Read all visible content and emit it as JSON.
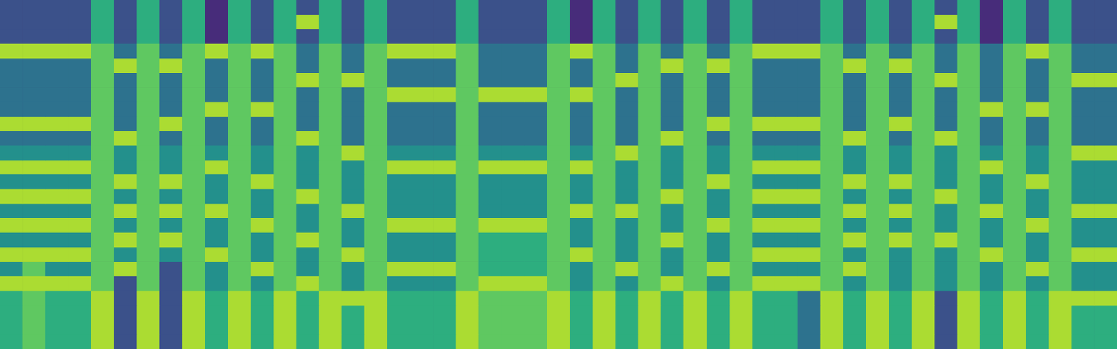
{
  "chart_data": {
    "type": "heatmap",
    "tick_labels": false,
    "color_range": [
      1,
      9
    ],
    "cells": [
      [
        3,
        3,
        3,
        3,
        6,
        3,
        6,
        3,
        6,
        2,
        6,
        3,
        6,
        3,
        6,
        3,
        6,
        3,
        3,
        3,
        6,
        3,
        3,
        3,
        6,
        2,
        6,
        3,
        6,
        3,
        6,
        3,
        6,
        3,
        3,
        3,
        6,
        3,
        6,
        3,
        6,
        3,
        6,
        2,
        6,
        3,
        6,
        3,
        3
      ],
      [
        3,
        3,
        3,
        3,
        6,
        3,
        6,
        3,
        6,
        2,
        6,
        3,
        6,
        8,
        6,
        3,
        6,
        3,
        3,
        3,
        6,
        3,
        3,
        3,
        6,
        2,
        6,
        3,
        6,
        3,
        6,
        3,
        6,
        3,
        3,
        3,
        6,
        3,
        6,
        3,
        6,
        8,
        6,
        2,
        6,
        3,
        6,
        3,
        3
      ],
      [
        3,
        3,
        3,
        3,
        6,
        3,
        6,
        3,
        6,
        2,
        6,
        3,
        6,
        3,
        6,
        3,
        6,
        3,
        3,
        3,
        6,
        3,
        3,
        3,
        6,
        2,
        6,
        3,
        6,
        3,
        6,
        3,
        6,
        3,
        3,
        3,
        6,
        3,
        6,
        3,
        6,
        3,
        6,
        2,
        6,
        3,
        6,
        3,
        3
      ],
      [
        8,
        8,
        8,
        8,
        7,
        4,
        7,
        4,
        7,
        8,
        7,
        8,
        7,
        4,
        7,
        4,
        7,
        8,
        8,
        8,
        7,
        4,
        4,
        4,
        7,
        8,
        7,
        4,
        7,
        4,
        7,
        4,
        7,
        8,
        8,
        8,
        7,
        4,
        7,
        4,
        7,
        4,
        7,
        4,
        7,
        8,
        7,
        4,
        4
      ],
      [
        4,
        4,
        4,
        4,
        7,
        8,
        7,
        8,
        7,
        4,
        7,
        4,
        7,
        4,
        7,
        4,
        7,
        4,
        4,
        4,
        7,
        4,
        4,
        4,
        7,
        4,
        7,
        4,
        7,
        8,
        7,
        8,
        7,
        4,
        4,
        4,
        7,
        8,
        7,
        8,
        7,
        4,
        7,
        4,
        7,
        4,
        7,
        4,
        4
      ],
      [
        4,
        4,
        4,
        4,
        7,
        4,
        7,
        4,
        7,
        4,
        7,
        4,
        7,
        8,
        7,
        8,
        7,
        4,
        4,
        4,
        7,
        4,
        4,
        4,
        7,
        4,
        7,
        8,
        7,
        4,
        7,
        4,
        7,
        4,
        4,
        4,
        7,
        4,
        7,
        4,
        7,
        8,
        7,
        4,
        7,
        4,
        7,
        8,
        8
      ],
      [
        4,
        4,
        4,
        4,
        7,
        4,
        7,
        4,
        7,
        4,
        7,
        4,
        7,
        4,
        7,
        4,
        7,
        8,
        8,
        8,
        7,
        8,
        8,
        8,
        7,
        8,
        7,
        4,
        7,
        4,
        7,
        4,
        7,
        4,
        4,
        4,
        7,
        4,
        7,
        4,
        7,
        4,
        7,
        4,
        7,
        4,
        7,
        4,
        4
      ],
      [
        4,
        4,
        4,
        4,
        7,
        4,
        7,
        4,
        7,
        8,
        7,
        8,
        7,
        4,
        7,
        4,
        7,
        4,
        4,
        4,
        7,
        4,
        4,
        4,
        7,
        4,
        7,
        4,
        7,
        4,
        7,
        4,
        7,
        4,
        4,
        4,
        7,
        4,
        7,
        4,
        7,
        4,
        7,
        8,
        7,
        8,
        7,
        4,
        4
      ],
      [
        8,
        8,
        8,
        8,
        7,
        4,
        7,
        8,
        7,
        4,
        7,
        4,
        7,
        4,
        7,
        4,
        7,
        4,
        4,
        4,
        7,
        4,
        4,
        4,
        7,
        4,
        7,
        4,
        7,
        4,
        7,
        8,
        7,
        8,
        8,
        8,
        7,
        4,
        7,
        8,
        7,
        4,
        7,
        4,
        7,
        4,
        7,
        4,
        4
      ],
      [
        4,
        4,
        4,
        4,
        7,
        8,
        7,
        4,
        7,
        4,
        7,
        4,
        7,
        8,
        7,
        4,
        7,
        4,
        4,
        4,
        7,
        4,
        4,
        4,
        7,
        4,
        7,
        4,
        7,
        8,
        7,
        4,
        7,
        4,
        4,
        4,
        7,
        8,
        7,
        4,
        7,
        8,
        7,
        4,
        7,
        4,
        7,
        4,
        4
      ],
      [
        5,
        5,
        5,
        5,
        7,
        5,
        7,
        5,
        7,
        5,
        7,
        5,
        7,
        5,
        7,
        8,
        7,
        5,
        5,
        5,
        7,
        5,
        5,
        5,
        7,
        5,
        7,
        8,
        7,
        5,
        7,
        5,
        7,
        5,
        5,
        5,
        7,
        5,
        7,
        5,
        7,
        5,
        7,
        5,
        7,
        5,
        7,
        8,
        8
      ],
      [
        8,
        8,
        8,
        8,
        7,
        5,
        7,
        5,
        7,
        8,
        7,
        5,
        7,
        5,
        7,
        5,
        7,
        8,
        8,
        8,
        7,
        8,
        8,
        8,
        7,
        8,
        7,
        5,
        7,
        5,
        7,
        5,
        7,
        8,
        8,
        8,
        7,
        5,
        7,
        5,
        7,
        5,
        7,
        8,
        7,
        5,
        7,
        5,
        5
      ],
      [
        5,
        5,
        5,
        5,
        7,
        8,
        7,
        8,
        7,
        5,
        7,
        8,
        7,
        5,
        7,
        5,
        7,
        5,
        5,
        5,
        7,
        5,
        5,
        5,
        7,
        5,
        7,
        5,
        7,
        5,
        7,
        8,
        7,
        5,
        5,
        5,
        7,
        8,
        7,
        8,
        7,
        5,
        7,
        5,
        7,
        8,
        7,
        5,
        5
      ],
      [
        8,
        8,
        8,
        8,
        7,
        5,
        7,
        5,
        7,
        5,
        7,
        5,
        7,
        8,
        7,
        5,
        7,
        5,
        5,
        5,
        7,
        5,
        5,
        5,
        7,
        5,
        7,
        5,
        7,
        8,
        7,
        5,
        7,
        8,
        8,
        8,
        7,
        5,
        7,
        5,
        7,
        8,
        7,
        5,
        7,
        5,
        7,
        5,
        5
      ],
      [
        5,
        5,
        5,
        5,
        7,
        8,
        7,
        8,
        7,
        8,
        7,
        5,
        7,
        5,
        7,
        8,
        7,
        5,
        5,
        5,
        7,
        5,
        5,
        5,
        7,
        8,
        7,
        8,
        7,
        5,
        7,
        5,
        7,
        5,
        5,
        5,
        7,
        8,
        7,
        8,
        7,
        5,
        7,
        8,
        7,
        5,
        7,
        8,
        8
      ],
      [
        8,
        8,
        8,
        8,
        7,
        5,
        7,
        5,
        7,
        5,
        7,
        8,
        7,
        5,
        7,
        5,
        7,
        8,
        8,
        8,
        7,
        8,
        8,
        8,
        7,
        5,
        7,
        5,
        7,
        5,
        7,
        8,
        7,
        8,
        8,
        8,
        7,
        5,
        7,
        5,
        7,
        5,
        7,
        5,
        7,
        8,
        7,
        5,
        5
      ],
      [
        5,
        5,
        5,
        5,
        7,
        8,
        7,
        8,
        7,
        5,
        7,
        5,
        7,
        8,
        7,
        5,
        7,
        5,
        5,
        5,
        7,
        6,
        6,
        6,
        7,
        5,
        7,
        5,
        7,
        8,
        7,
        5,
        7,
        5,
        5,
        5,
        7,
        8,
        7,
        8,
        7,
        8,
        7,
        5,
        7,
        5,
        7,
        5,
        5
      ],
      [
        8,
        8,
        8,
        8,
        7,
        5,
        7,
        5,
        7,
        8,
        7,
        5,
        7,
        5,
        7,
        8,
        7,
        5,
        5,
        5,
        7,
        6,
        6,
        6,
        7,
        8,
        7,
        5,
        7,
        5,
        7,
        5,
        7,
        8,
        8,
        8,
        7,
        5,
        7,
        5,
        7,
        5,
        7,
        8,
        7,
        5,
        7,
        8,
        8
      ],
      [
        5,
        7,
        5,
        5,
        7,
        8,
        7,
        3,
        7,
        5,
        7,
        8,
        7,
        5,
        7,
        5,
        7,
        8,
        8,
        8,
        7,
        6,
        6,
        6,
        7,
        5,
        7,
        8,
        7,
        5,
        7,
        8,
        7,
        5,
        5,
        5,
        7,
        8,
        7,
        5,
        7,
        5,
        7,
        5,
        7,
        8,
        7,
        5,
        5
      ],
      [
        8,
        8,
        8,
        8,
        7,
        3,
        7,
        3,
        7,
        5,
        7,
        5,
        7,
        8,
        7,
        5,
        7,
        5,
        5,
        5,
        7,
        8,
        8,
        8,
        7,
        5,
        7,
        5,
        7,
        8,
        7,
        5,
        7,
        8,
        8,
        8,
        7,
        5,
        7,
        5,
        7,
        5,
        7,
        5,
        7,
        5,
        7,
        5,
        5
      ],
      [
        6,
        7,
        6,
        6,
        8,
        3,
        8,
        3,
        8,
        6,
        8,
        6,
        8,
        6,
        8,
        8,
        8,
        6,
        6,
        6,
        8,
        7,
        7,
        7,
        8,
        6,
        8,
        6,
        8,
        6,
        8,
        6,
        8,
        6,
        6,
        4,
        8,
        6,
        8,
        6,
        8,
        3,
        8,
        6,
        8,
        6,
        8,
        8,
        8
      ],
      [
        6,
        7,
        6,
        6,
        8,
        3,
        8,
        3,
        8,
        6,
        8,
        6,
        8,
        6,
        8,
        6,
        8,
        6,
        6,
        6,
        8,
        7,
        7,
        7,
        8,
        6,
        8,
        6,
        8,
        6,
        8,
        6,
        8,
        6,
        6,
        4,
        8,
        6,
        8,
        6,
        8,
        3,
        8,
        6,
        8,
        6,
        8,
        6,
        6
      ],
      [
        6,
        7,
        6,
        6,
        8,
        3,
        8,
        3,
        8,
        6,
        8,
        6,
        8,
        6,
        8,
        6,
        8,
        6,
        6,
        6,
        8,
        7,
        7,
        7,
        8,
        6,
        8,
        6,
        8,
        6,
        8,
        6,
        8,
        6,
        6,
        4,
        8,
        6,
        8,
        6,
        8,
        3,
        8,
        6,
        8,
        6,
        8,
        6,
        6
      ],
      [
        6,
        7,
        6,
        6,
        8,
        3,
        8,
        3,
        8,
        6,
        8,
        6,
        8,
        6,
        8,
        6,
        8,
        6,
        6,
        6,
        8,
        7,
        7,
        7,
        8,
        6,
        8,
        6,
        8,
        6,
        8,
        6,
        8,
        6,
        6,
        4,
        8,
        6,
        8,
        6,
        8,
        3,
        8,
        6,
        8,
        6,
        8,
        6,
        6
      ]
    ]
  }
}
